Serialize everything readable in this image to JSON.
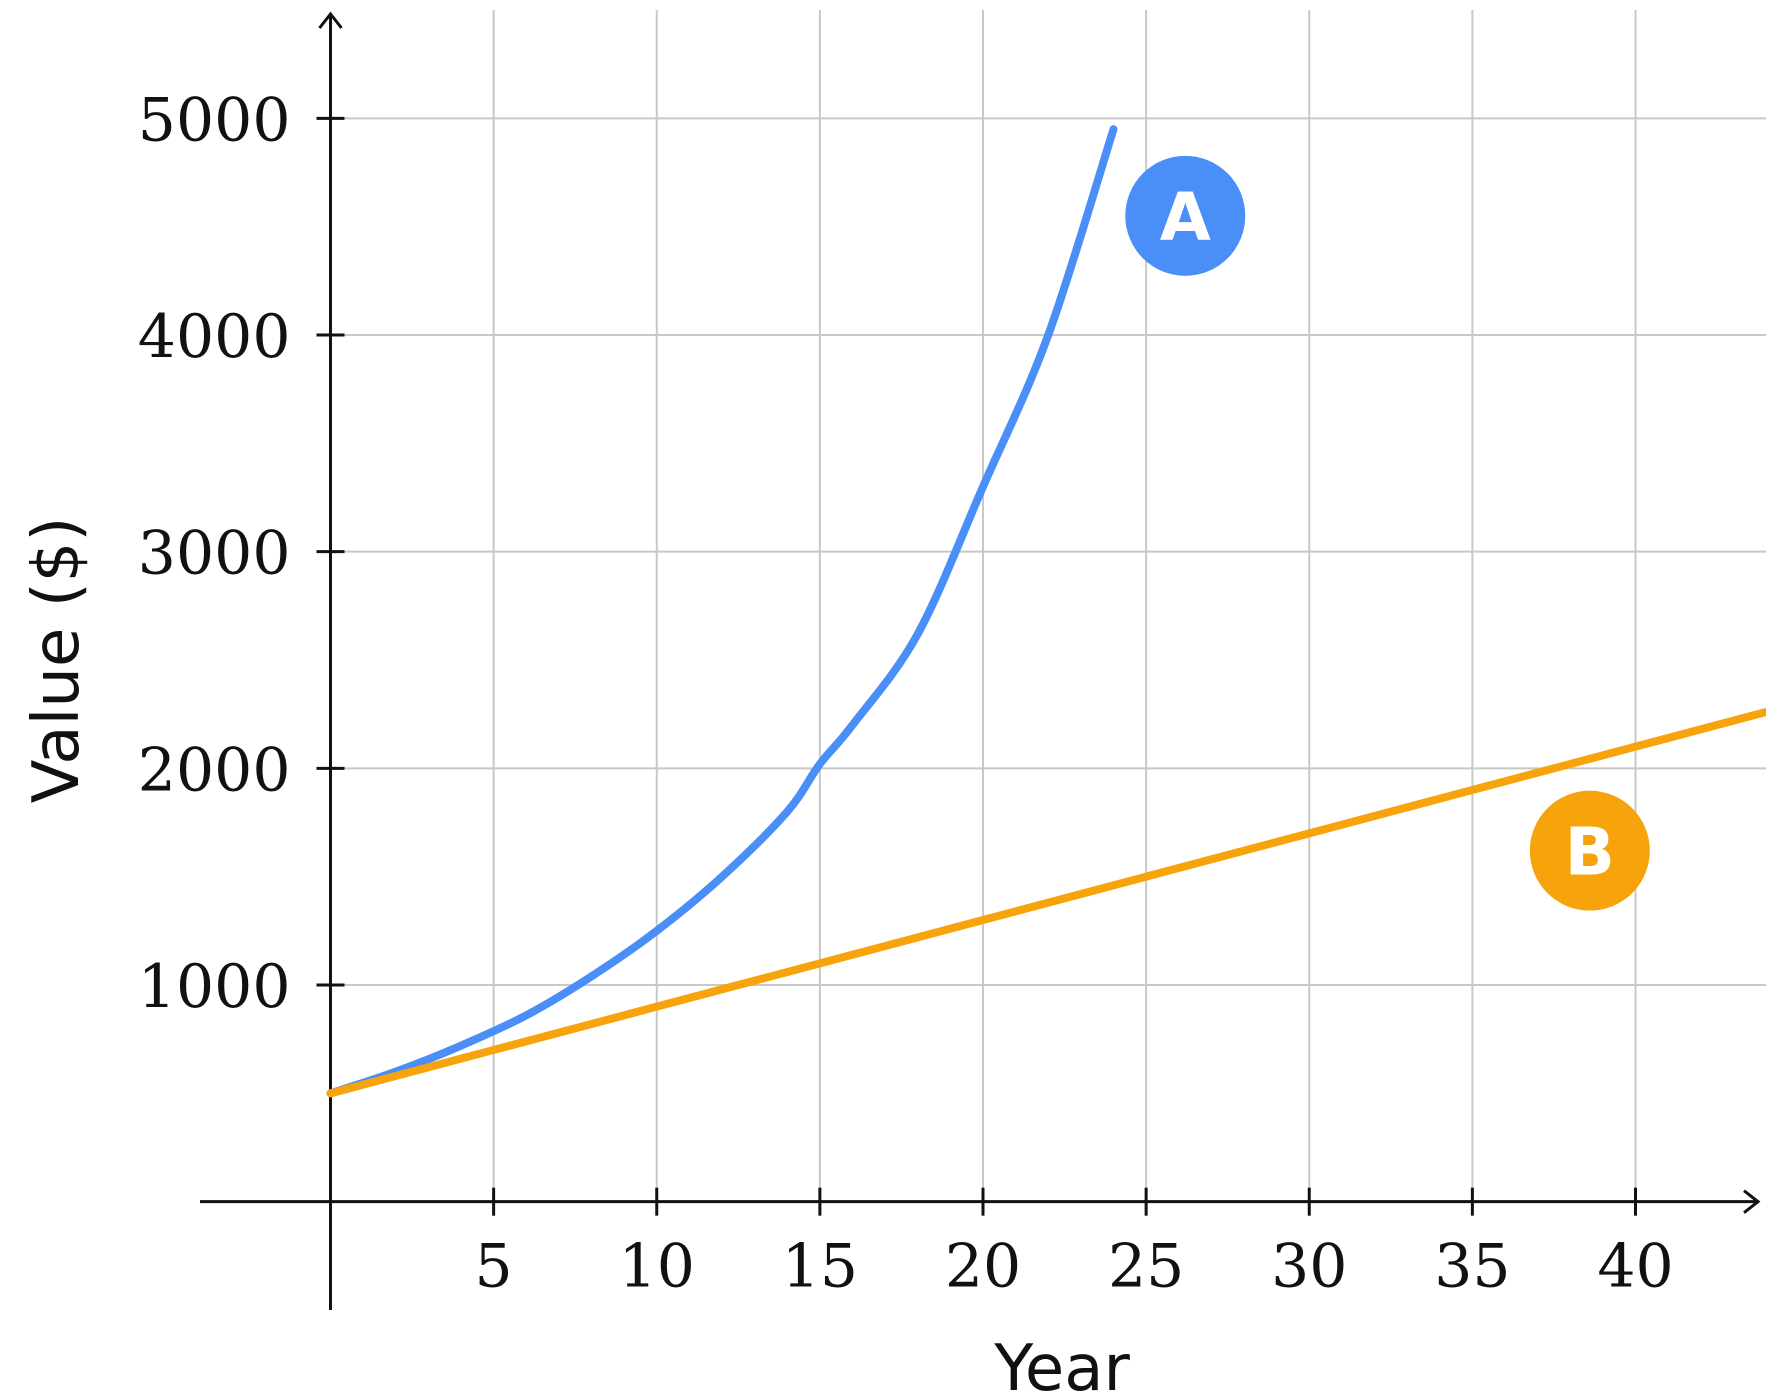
{
  "chart_data": {
    "type": "line",
    "title": "",
    "xlabel": "Year",
    "ylabel": "Value ($)",
    "xlim": [
      -4,
      44
    ],
    "ylim": [
      -500,
      5500
    ],
    "x_ticks": [
      5,
      10,
      15,
      20,
      25,
      30,
      35,
      40
    ],
    "x_tick_labels": [
      "5",
      "10",
      "15",
      "20",
      "25",
      "30",
      "35",
      "40"
    ],
    "y_ticks": [
      1000,
      2000,
      3000,
      4000,
      5000
    ],
    "y_tick_labels": [
      "1000",
      "2000",
      "3000",
      "4000",
      "5000"
    ],
    "grid": true,
    "legend": "none",
    "series": [
      {
        "name": "A",
        "color": "#4a8ff7",
        "x": [
          0,
          2,
          4,
          6,
          8,
          10,
          12,
          14,
          15,
          16,
          18,
          20,
          22,
          24
        ],
        "y": [
          500,
          600,
          720,
          860,
          1040,
          1250,
          1500,
          1800,
          2020,
          2200,
          2620,
          3300,
          4000,
          4950
        ]
      },
      {
        "name": "B",
        "color": "#f7a30c",
        "x": [
          0,
          10,
          20,
          30,
          40,
          44
        ],
        "y": [
          500,
          900,
          1300,
          1700,
          2100,
          2260
        ]
      }
    ],
    "annotations": [
      {
        "text": "A",
        "series": 0,
        "x": 26.2,
        "y": 4550
      },
      {
        "text": "B",
        "series": 1,
        "x": 38.6,
        "y": 1620
      }
    ]
  }
}
